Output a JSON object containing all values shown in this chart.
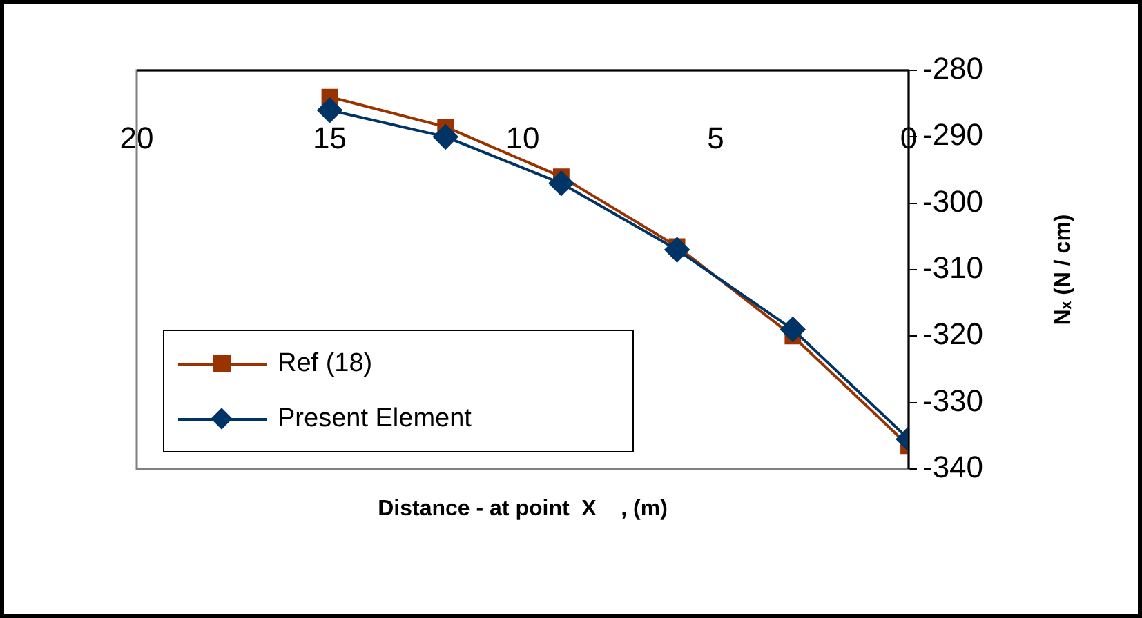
{
  "chart_data": {
    "type": "line",
    "xlabel": "Distance - at point  X    , (m)",
    "ylabel": "Nₓ (N / cm)",
    "xlim": [
      20,
      0
    ],
    "xticks": [
      20,
      15,
      10,
      5,
      0
    ],
    "ylim": [
      -340,
      -280
    ],
    "yticks": [
      -340,
      -330,
      -320,
      -310,
      -300,
      -290,
      -280
    ],
    "legend": "bottom left",
    "grid": false,
    "series": [
      {
        "name": "Ref (18)",
        "color": "#993300",
        "marker": "square",
        "x": [
          15,
          12,
          9,
          6,
          3,
          0
        ],
        "values": [
          -284,
          -288.5,
          -296,
          -306.5,
          -320,
          -336.5
        ]
      },
      {
        "name": "Present Element",
        "color": "#003366",
        "marker": "diamond",
        "x": [
          15,
          12,
          9,
          6,
          3,
          0
        ],
        "values": [
          -286,
          -290,
          -297,
          -307,
          -319,
          -335.5
        ]
      }
    ]
  }
}
